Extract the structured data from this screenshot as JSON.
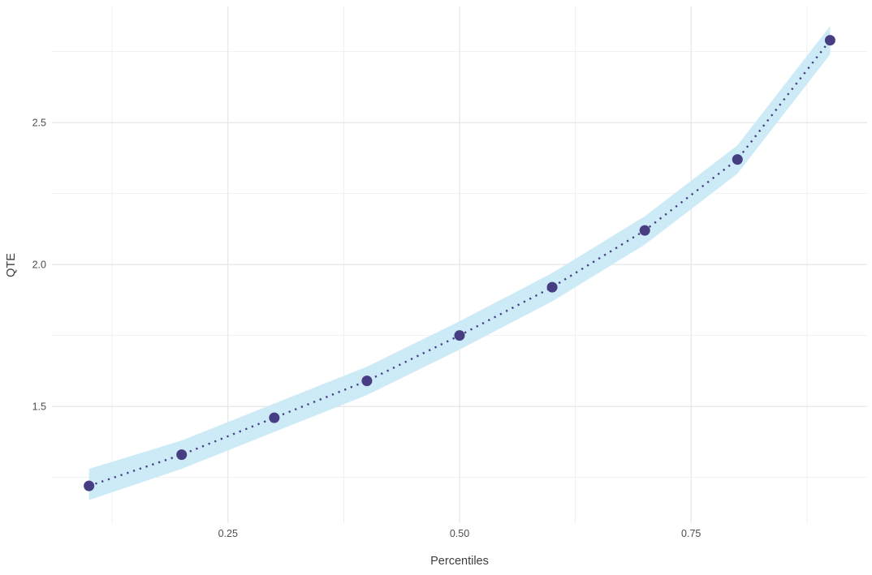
{
  "chart_data": {
    "type": "scatter",
    "title": "",
    "xlabel": "Percentiles",
    "ylabel": "QTE",
    "x": [
      0.1,
      0.2,
      0.3,
      0.4,
      0.5,
      0.6,
      0.7,
      0.8,
      0.9
    ],
    "y": [
      1.22,
      1.33,
      1.46,
      1.59,
      1.75,
      1.92,
      2.12,
      2.37,
      2.79
    ],
    "ci_lower": [
      1.17,
      1.28,
      1.41,
      1.54,
      1.7,
      1.87,
      2.07,
      2.32,
      2.74
    ],
    "ci_upper": [
      1.28,
      1.38,
      1.51,
      1.64,
      1.8,
      1.97,
      2.17,
      2.42,
      2.84
    ],
    "x_domain": [
      0.06,
      0.94
    ],
    "y_domain": [
      1.089,
      2.909
    ],
    "x_ticks": [
      0.25,
      0.5,
      0.75
    ],
    "x_tick_labels": [
      "0.25",
      "0.50",
      "0.75"
    ],
    "x_minor_ticks": [
      0.125,
      0.375,
      0.625,
      0.875
    ],
    "y_ticks": [
      1.5,
      2.0,
      2.5
    ],
    "y_tick_labels": [
      "1.5",
      "2.0",
      "2.5"
    ],
    "y_minor_ticks": [
      1.25,
      1.75,
      2.25,
      2.75
    ],
    "grid": true,
    "legend": "none",
    "line_style": "dotted",
    "colors": {
      "background": "#ffffff",
      "point": "#463d82",
      "line": "#463d82",
      "ribbon": "#cdeaf7",
      "grid_major": "#e4e4e4",
      "grid_minor": "#ededed",
      "tick_label": "#4d4d4d",
      "axis_title": "#3d3d3d"
    }
  }
}
